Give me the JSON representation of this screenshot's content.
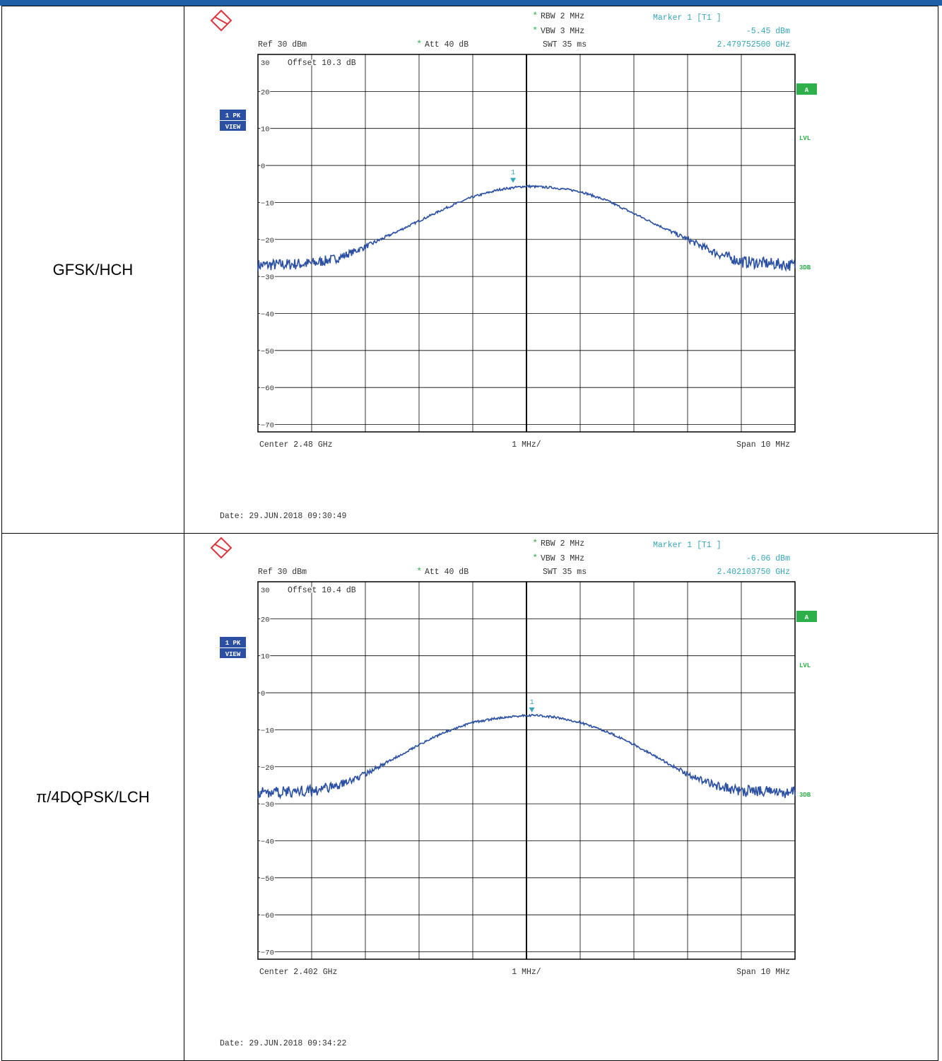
{
  "colors": {
    "trace": "#2a4fa3",
    "info": "#38a6b8",
    "green": "#2db04a",
    "badge": "#2a4fa3",
    "grid": "#000000",
    "logo": "#e0333c"
  },
  "rows": [
    {
      "mode": "GFSK/HCH",
      "header": {
        "rbw": "RBW  2 MHz",
        "vbw": "VBW  3 MHz",
        "ref": "Ref  30 dBm",
        "att": "Att  40 dB",
        "swt": "SWT  35 ms",
        "marker_label": "Marker 1 [T1 ]",
        "marker_level": "-5.45 dBm",
        "marker_freq": "2.479752500 GHz",
        "offset": "Offset  10.3 dB",
        "star": "*"
      },
      "badges": {
        "trace_mode": "1 PK",
        "view": "VIEW",
        "a": "A",
        "lvl": "LVL",
        "db3": "3DB"
      },
      "footer": {
        "center": "Center  2.48 GHz",
        "div": "1 MHz/",
        "span": "Span  10 MHz",
        "date": "Date: 29.JUN.2018  09:30:49"
      },
      "chart_data": {
        "type": "line",
        "x_unit": "MHz offset from center",
        "xlim": [
          -5,
          5
        ],
        "ylim": [
          -72,
          30
        ],
        "yticks": [
          30,
          20,
          10,
          0,
          -10,
          -20,
          -30,
          -40,
          -50,
          -60,
          -70
        ],
        "grid": true,
        "series": [
          {
            "x": [
              -5,
              -4,
              -3.5,
              -3,
              -2.5,
              -2,
              -1.5,
              -1,
              -0.5,
              -0.25,
              0,
              0.5,
              1,
              1.5,
              2,
              2.5,
              3,
              3.5,
              4,
              5
            ],
            "y": [
              -27,
              -26.5,
              -25,
              -22,
              -18.5,
              -15,
              -11.5,
              -8.5,
              -6.5,
              -6,
              -5.6,
              -6,
              -7,
              -9.5,
              -13,
              -16.5,
              -20,
              -23.5,
              -26,
              -27
            ]
          }
        ],
        "marker": {
          "label": "1",
          "x": -0.25,
          "y": -5.45
        }
      }
    },
    {
      "mode": "π/4DQPSK/LCH",
      "header": {
        "rbw": "RBW  2 MHz",
        "vbw": "VBW  3 MHz",
        "ref": "Ref  30 dBm",
        "att": "Att  40 dB",
        "swt": "SWT  35 ms",
        "marker_label": "Marker 1 [T1 ]",
        "marker_level": "-6.06 dBm",
        "marker_freq": "2.402103750 GHz",
        "offset": "Offset  10.4 dB",
        "star": "*"
      },
      "badges": {
        "trace_mode": "1 PK",
        "view": "VIEW",
        "a": "A",
        "lvl": "LVL",
        "db3": "3DB"
      },
      "footer": {
        "center": "Center  2.402 GHz",
        "div": "1 MHz/",
        "span": "Span  10 MHz",
        "date": "Date: 29.JUN.2018  09:34:22"
      },
      "chart_data": {
        "type": "line",
        "x_unit": "MHz offset from center",
        "xlim": [
          -5,
          5
        ],
        "ylim": [
          -72,
          30
        ],
        "yticks": [
          30,
          20,
          10,
          0,
          -10,
          -20,
          -30,
          -40,
          -50,
          -60,
          -70
        ],
        "grid": true,
        "series": [
          {
            "x": [
              -5,
              -4,
              -3.5,
              -3,
              -2.5,
              -2,
              -1.5,
              -1,
              -0.5,
              0,
              0.1,
              0.5,
              1,
              1.5,
              2,
              2.5,
              3,
              3.5,
              4,
              5
            ],
            "y": [
              -27,
              -26.5,
              -25,
              -22,
              -18,
              -14,
              -10.5,
              -8,
              -6.8,
              -6.1,
              -6.06,
              -6.5,
              -8,
              -10.5,
              -14,
              -18,
              -22,
              -25,
              -26.5,
              -27
            ]
          }
        ],
        "marker": {
          "label": "1",
          "x": 0.1,
          "y": -6.06
        }
      }
    }
  ]
}
